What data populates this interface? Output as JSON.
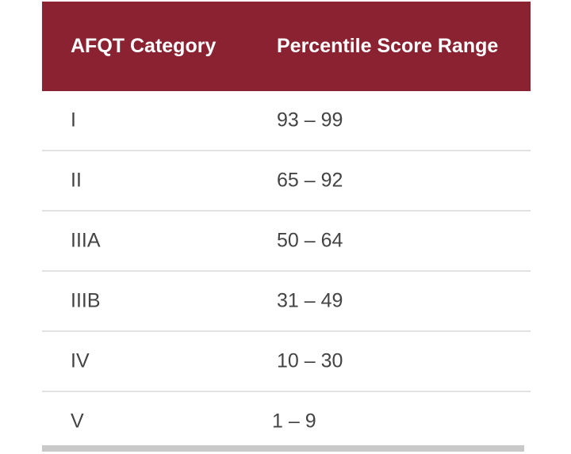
{
  "colors": {
    "header_bg": "#8a2232",
    "header_text": "#ffffff",
    "cell_text": "#444444",
    "row_divider": "#e2e2e2"
  },
  "table": {
    "headers": [
      "AFQT Category",
      "Percentile Score Range"
    ],
    "rows": [
      [
        "I",
        "93 – 99"
      ],
      [
        "II",
        "65 – 92"
      ],
      [
        "IIIA",
        "50 – 64"
      ],
      [
        "IIIB",
        "31 – 49"
      ],
      [
        "IV",
        "10 – 30"
      ],
      [
        "V",
        "1 – 9"
      ]
    ]
  }
}
